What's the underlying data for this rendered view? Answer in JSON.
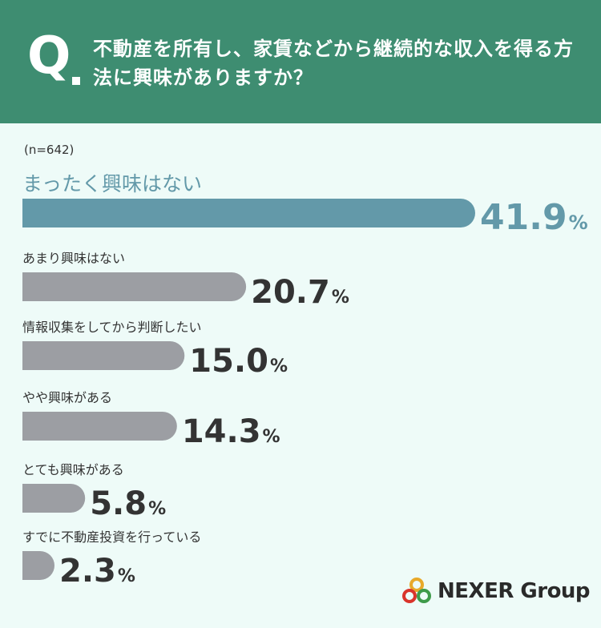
{
  "header": {
    "q_mark": "Q",
    "question": "不動産を所有し、家賃などから継続的な収入を得る方法に興味がありますか？"
  },
  "sample_label": "(n=642)",
  "logo": {
    "text": "NEXER Group"
  },
  "colors": {
    "header_bg": "#3e8d71",
    "background": "#eefbf8",
    "highlight_bar": "#6399a9",
    "other_bar": "#9c9ea3",
    "highlight_text": "#6399a9",
    "text": "#333333"
  },
  "chart_data": {
    "type": "bar",
    "orientation": "horizontal",
    "title": "",
    "categories": [
      "まったく興味はない",
      "あまり興味はない",
      "情報収集をしてから判断したい",
      "やや興味がある",
      "とても興味がある",
      "すでに不動産投資を行っている"
    ],
    "values": [
      41.9,
      20.7,
      15.0,
      14.3,
      5.8,
      2.3
    ],
    "value_labels": [
      "41.9",
      "20.7",
      "15.0",
      "14.3",
      "5.8",
      "2.3"
    ],
    "unit": "%",
    "highlight_index": 0,
    "xlim": [
      0,
      41.9
    ]
  }
}
